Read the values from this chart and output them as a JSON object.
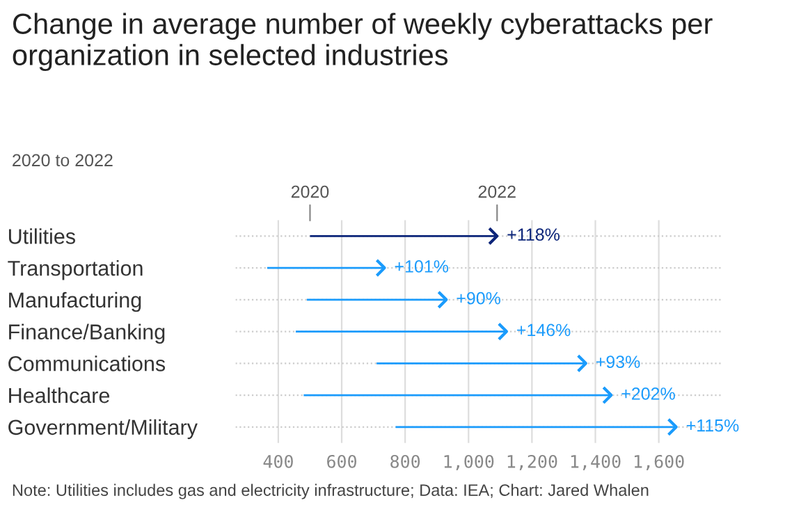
{
  "chart_data": {
    "type": "bar",
    "orientation": "horizontal",
    "title": "Change in average number of weekly cyberattacks per organization in selected industries",
    "subtitle": "2020 to 2022",
    "categories": [
      "Utilities",
      "Transportation",
      "Manufacturing",
      "Finance/Banking",
      "Communications",
      "Healthcare",
      "Government/Military"
    ],
    "base": [
      500,
      365,
      490,
      455,
      710,
      480,
      770
    ],
    "values": [
      590,
      370,
      440,
      665,
      660,
      970,
      885
    ],
    "colors": [
      "#0b2479",
      "#1a9bfc",
      "#1a9bfc",
      "#1a9bfc",
      "#1a9bfc",
      "#1a9bfc",
      "#1a9bfc"
    ],
    "xlim": [
      265,
      1800
    ],
    "xticks": [
      {
        "value": 400,
        "label": "400"
      },
      {
        "value": 600,
        "label": "600"
      },
      {
        "value": 800,
        "label": "800"
      },
      {
        "value": 1000,
        "label": "1,000"
      },
      {
        "value": 1200,
        "label": "1,200"
      },
      {
        "value": 1400,
        "label": "1,400"
      },
      {
        "value": 1600,
        "label": "1,600"
      }
    ],
    "grid": true,
    "annotations": [
      {
        "text": "2020",
        "x": 500,
        "y": "Utilities"
      },
      {
        "text": "2022",
        "x": 1090,
        "y": "Utilities"
      },
      {
        "text": "+118%",
        "x": 1090,
        "y": "Utilities"
      },
      {
        "text": "+101%",
        "x": 735,
        "y": "Transportation"
      },
      {
        "text": "+90%",
        "x": 930,
        "y": "Manufacturing"
      },
      {
        "text": "+146%",
        "x": 1120,
        "y": "Finance/Banking"
      },
      {
        "text": "+93%",
        "x": 1370,
        "y": "Communications"
      },
      {
        "text": "+202%",
        "x": 1450,
        "y": "Healthcare"
      },
      {
        "text": "+115%",
        "x": 1655,
        "y": "Government/Military"
      },
      "Note: Utilities includes gas and electricity infrastructure; Data: IEA; Chart: Jared Whalen"
    ]
  }
}
